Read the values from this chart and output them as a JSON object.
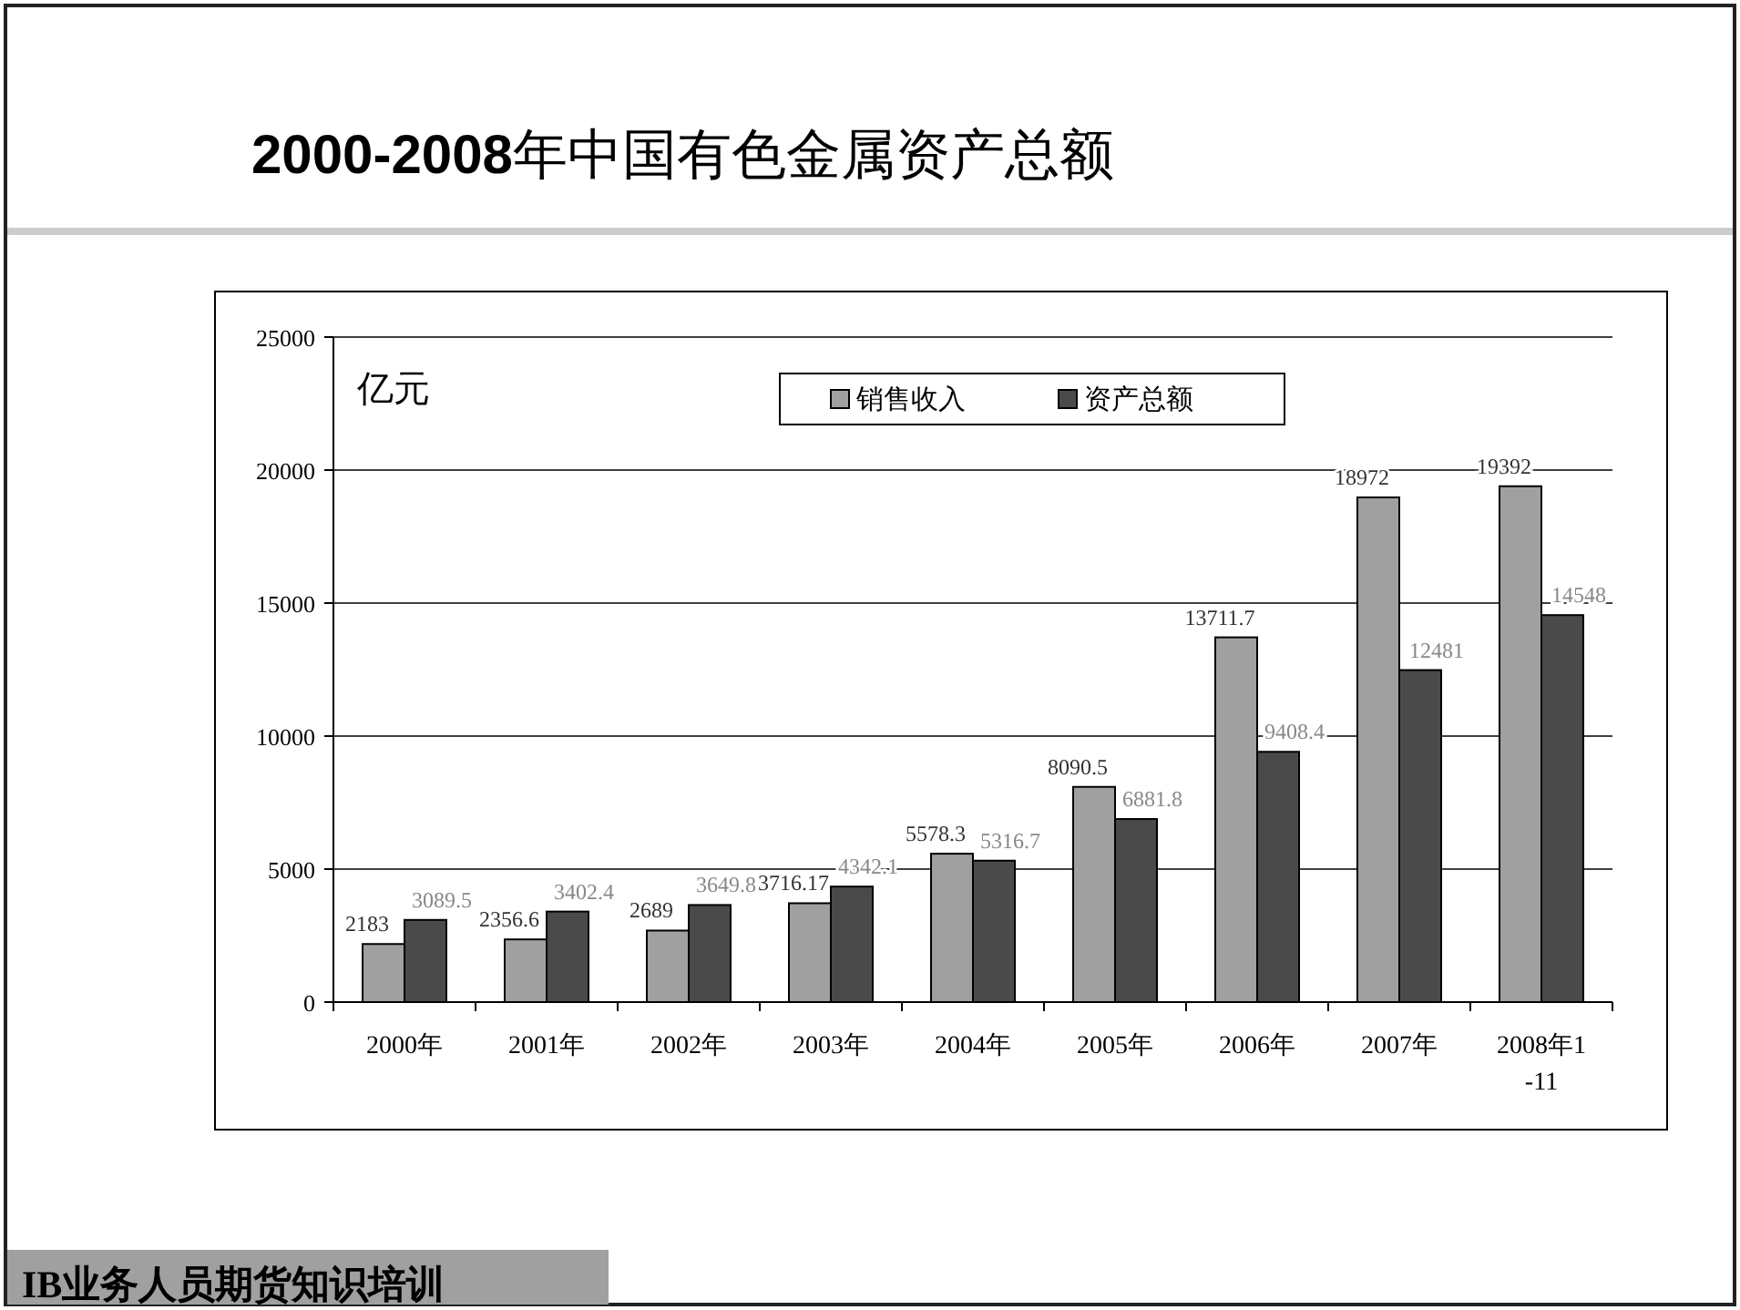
{
  "chart_data": {
    "type": "bar",
    "title": "**2000-2008**年中国有色金属资产总额",
    "ylabel": "亿元",
    "categories": [
      "2000年",
      "2001年",
      "2002年",
      "2003年",
      "2004年",
      "2005年",
      "2006年",
      "2007年",
      "2008年1-11"
    ],
    "series": [
      {
        "name": "销售收入",
        "color": "#a0a0a0",
        "values": [
          2183,
          2356.6,
          2689,
          3716.17,
          5578.3,
          8090.5,
          13711.7,
          18972,
          19392
        ]
      },
      {
        "name": "资产总额",
        "color": "#4a4a4a",
        "values": [
          3089.5,
          3402.4,
          3649.8,
          4342.1,
          5316.7,
          6881.8,
          9408.4,
          12481,
          14548
        ]
      }
    ],
    "ylim": [
      0,
      25000
    ],
    "yticks": [
      0,
      5000,
      10000,
      15000,
      20000,
      25000
    ],
    "grid": "y",
    "legend": "top",
    "data_labels": true,
    "annotations": [
      "IB业务人员期货知识培训"
    ]
  }
}
